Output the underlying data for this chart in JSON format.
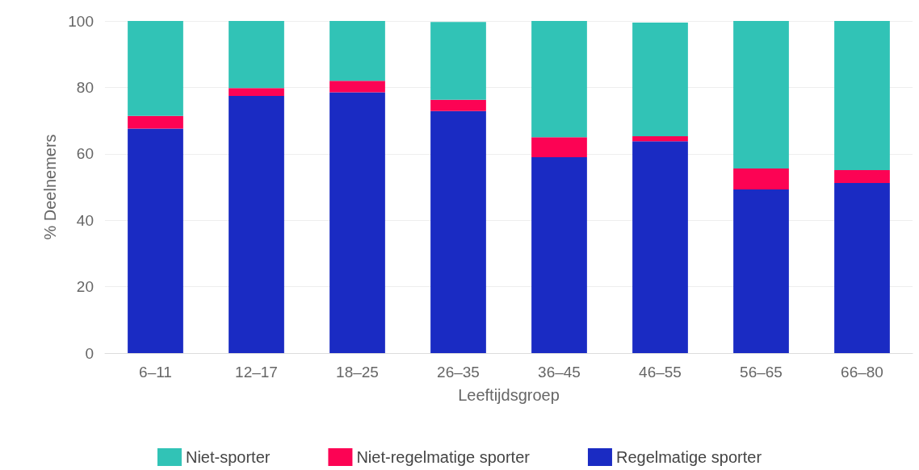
{
  "chart_data": {
    "type": "bar",
    "stacked": true,
    "xlabel": "Leeftijdsgroep",
    "ylabel": "% Deelnemers",
    "categories": [
      "6–11",
      "12–17",
      "18–25",
      "26–35",
      "36–45",
      "46–55",
      "56–65",
      "66–80"
    ],
    "series": [
      {
        "name": "Regelmatige sporter",
        "color": "#1a2bc3",
        "values": [
          67.6,
          77.4,
          78.5,
          72.9,
          59.0,
          63.8,
          49.3,
          51.2
        ]
      },
      {
        "name": "Niet-regelmatige sporter",
        "color": "#fc0354",
        "values": [
          3.8,
          2.4,
          3.5,
          3.4,
          6.0,
          1.5,
          6.3,
          3.9
        ]
      },
      {
        "name": "Niet-sporter",
        "color": "#31c3b6",
        "values": [
          28.6,
          20.2,
          18.0,
          23.4,
          35.0,
          34.2,
          44.4,
          44.9
        ]
      }
    ],
    "ylim": [
      0,
      100
    ],
    "yticks": [
      0,
      20,
      40,
      60,
      80,
      100
    ],
    "grid": "y",
    "legend": "bottom"
  }
}
